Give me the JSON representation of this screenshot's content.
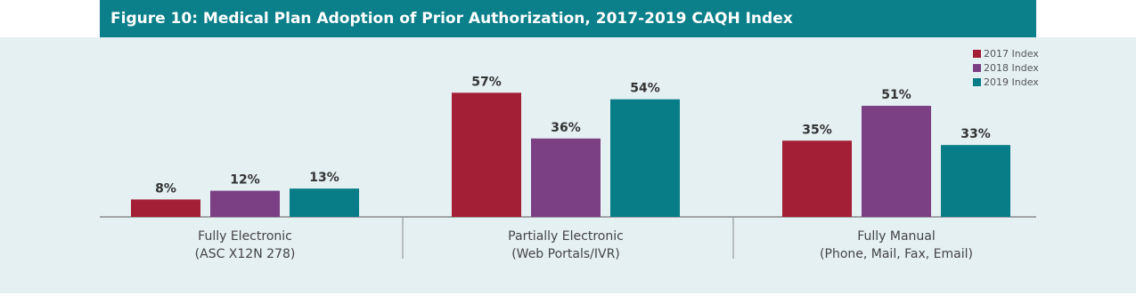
{
  "chart_data": {
    "type": "bar",
    "title": "Figure 10: Medical Plan Adoption of Prior Authorization, 2017-2019 CAQH Index",
    "categories": [
      "Fully Electronic",
      "Partially Electronic",
      "Fully Manual"
    ],
    "category_details": [
      "(ASC X12N 278)",
      "(Web Portals/IVR)",
      "(Phone, Mail, Fax, Email)"
    ],
    "series": [
      {
        "name": "2017 Index",
        "color": "#a31f35",
        "values": [
          8,
          57,
          35
        ],
        "value_labels": [
          "8%",
          "57%",
          "35%"
        ]
      },
      {
        "name": "2018 Index",
        "color": "#7b3f84",
        "values": [
          12,
          36,
          51
        ],
        "value_labels": [
          "12%",
          "36%",
          "51%"
        ]
      },
      {
        "name": "2019 Index",
        "color": "#087d88",
        "values": [
          13,
          54,
          33
        ],
        "value_labels": [
          "13%",
          "54%",
          "33%"
        ]
      }
    ],
    "legend": "top-right"
  }
}
